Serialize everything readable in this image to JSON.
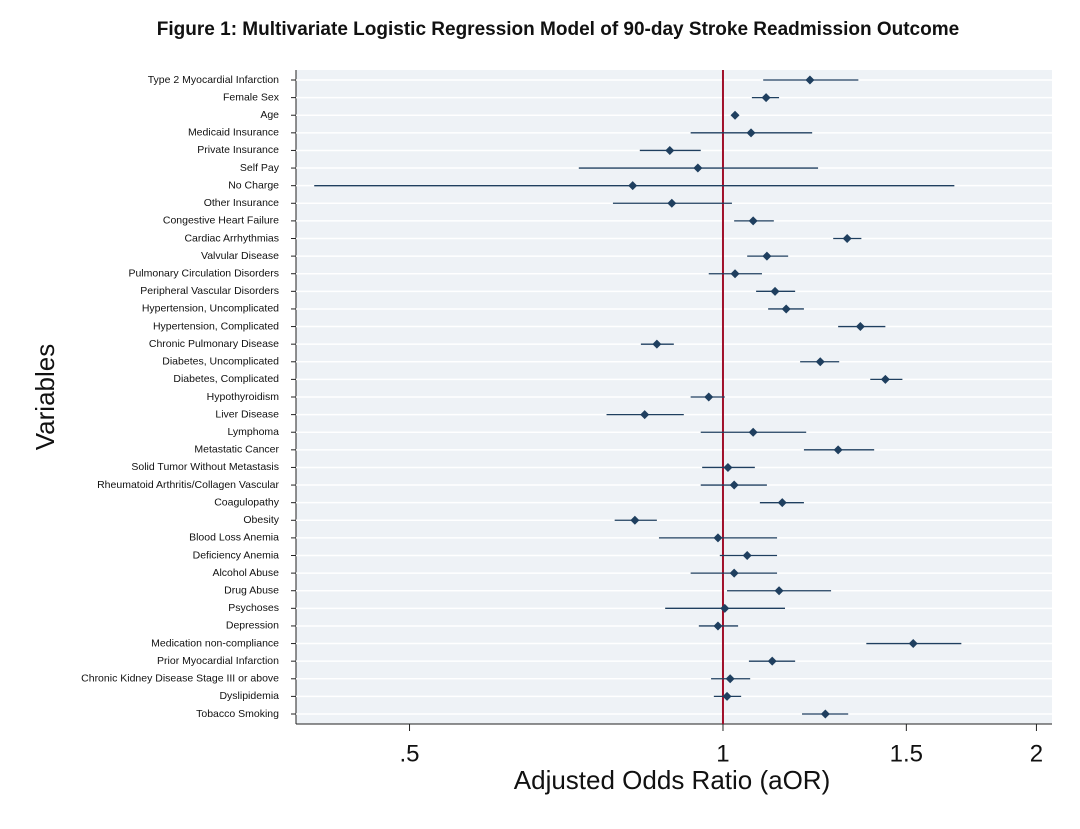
{
  "chart_data": {
    "type": "forest",
    "title": "Figure 1: Multivariate Logistic Regression Model of 90-day Stroke Readmission Outcome",
    "x_label": "Adjusted Odds Ratio (aOR)",
    "y_label": "Variables",
    "categories": [
      "Type 2 Myocardial Infarction",
      "Female Sex",
      "Age",
      "Medicaid Insurance",
      "Private Insurance",
      "Self Pay",
      "No Charge",
      "Other Insurance",
      "Congestive Heart Failure",
      "Cardiac Arrhythmias",
      "Valvular Disease",
      "Pulmonary Circulation Disorders",
      "Peripheral Vascular Disorders",
      "Hypertension, Uncomplicated",
      "Hypertension, Complicated",
      "Chronic Pulmonary Disease",
      "Diabetes, Uncomplicated",
      "Diabetes, Complicated",
      "Hypothyroidism",
      "Liver Disease",
      "Lymphoma",
      "Metastatic Cancer",
      "Solid Tumor Without Metastasis",
      "Rheumatoid Arthritis/Collagen Vascular",
      "Coagulopathy",
      "Obesity",
      "Blood Loss Anemia",
      "Deficiency Anemia",
      "Alcohol Abuse",
      "Drug Abuse",
      "Psychoses",
      "Depression",
      "Medication non-compliance",
      "Prior Myocardial Infarction",
      "Chronic Kidney Disease Stage III or above",
      "Dyslipidemia",
      "Tobacco Smoking"
    ],
    "values": [
      1.212,
      1.1,
      1.027,
      1.064,
      0.889,
      0.946,
      0.819,
      0.893,
      1.069,
      1.316,
      1.102,
      1.027,
      1.122,
      1.15,
      1.355,
      0.864,
      1.24,
      1.432,
      0.969,
      0.841,
      1.069,
      1.29,
      1.011,
      1.025,
      1.14,
      0.823,
      0.989,
      1.055,
      1.025,
      1.132,
      1.004,
      0.989,
      1.523,
      1.115,
      1.016,
      1.009,
      1.254
    ],
    "lower": [
      1.093,
      1.066,
      1.022,
      0.931,
      0.832,
      0.727,
      0.405,
      0.784,
      1.025,
      1.276,
      1.055,
      0.969,
      1.076,
      1.105,
      1.29,
      0.834,
      1.186,
      1.385,
      0.931,
      0.773,
      0.952,
      1.196,
      0.955,
      0.952,
      1.085,
      0.787,
      0.868,
      0.993,
      0.931,
      1.009,
      0.88,
      0.948,
      1.373,
      1.059,
      0.974,
      0.98,
      1.191
    ],
    "upper": [
      1.349,
      1.132,
      1.032,
      1.218,
      0.952,
      1.234,
      1.668,
      1.02,
      1.119,
      1.358,
      1.155,
      1.09,
      1.173,
      1.196,
      1.432,
      0.897,
      1.293,
      1.487,
      1.004,
      0.917,
      1.202,
      1.397,
      1.073,
      1.102,
      1.196,
      0.864,
      1.127,
      1.127,
      1.127,
      1.27,
      1.147,
      1.034,
      1.694,
      1.173,
      1.062,
      1.041,
      1.319
    ],
    "marker_color": "#1f3f5f",
    "reference_x": 1,
    "reference_color": "#a0102a",
    "xscale": "log",
    "xlim": [
      0.389,
      2.07
    ],
    "xticks": [
      {
        "value": 0.5,
        "label": ".5"
      },
      1,
      1.5,
      2
    ],
    "grid": true
  }
}
